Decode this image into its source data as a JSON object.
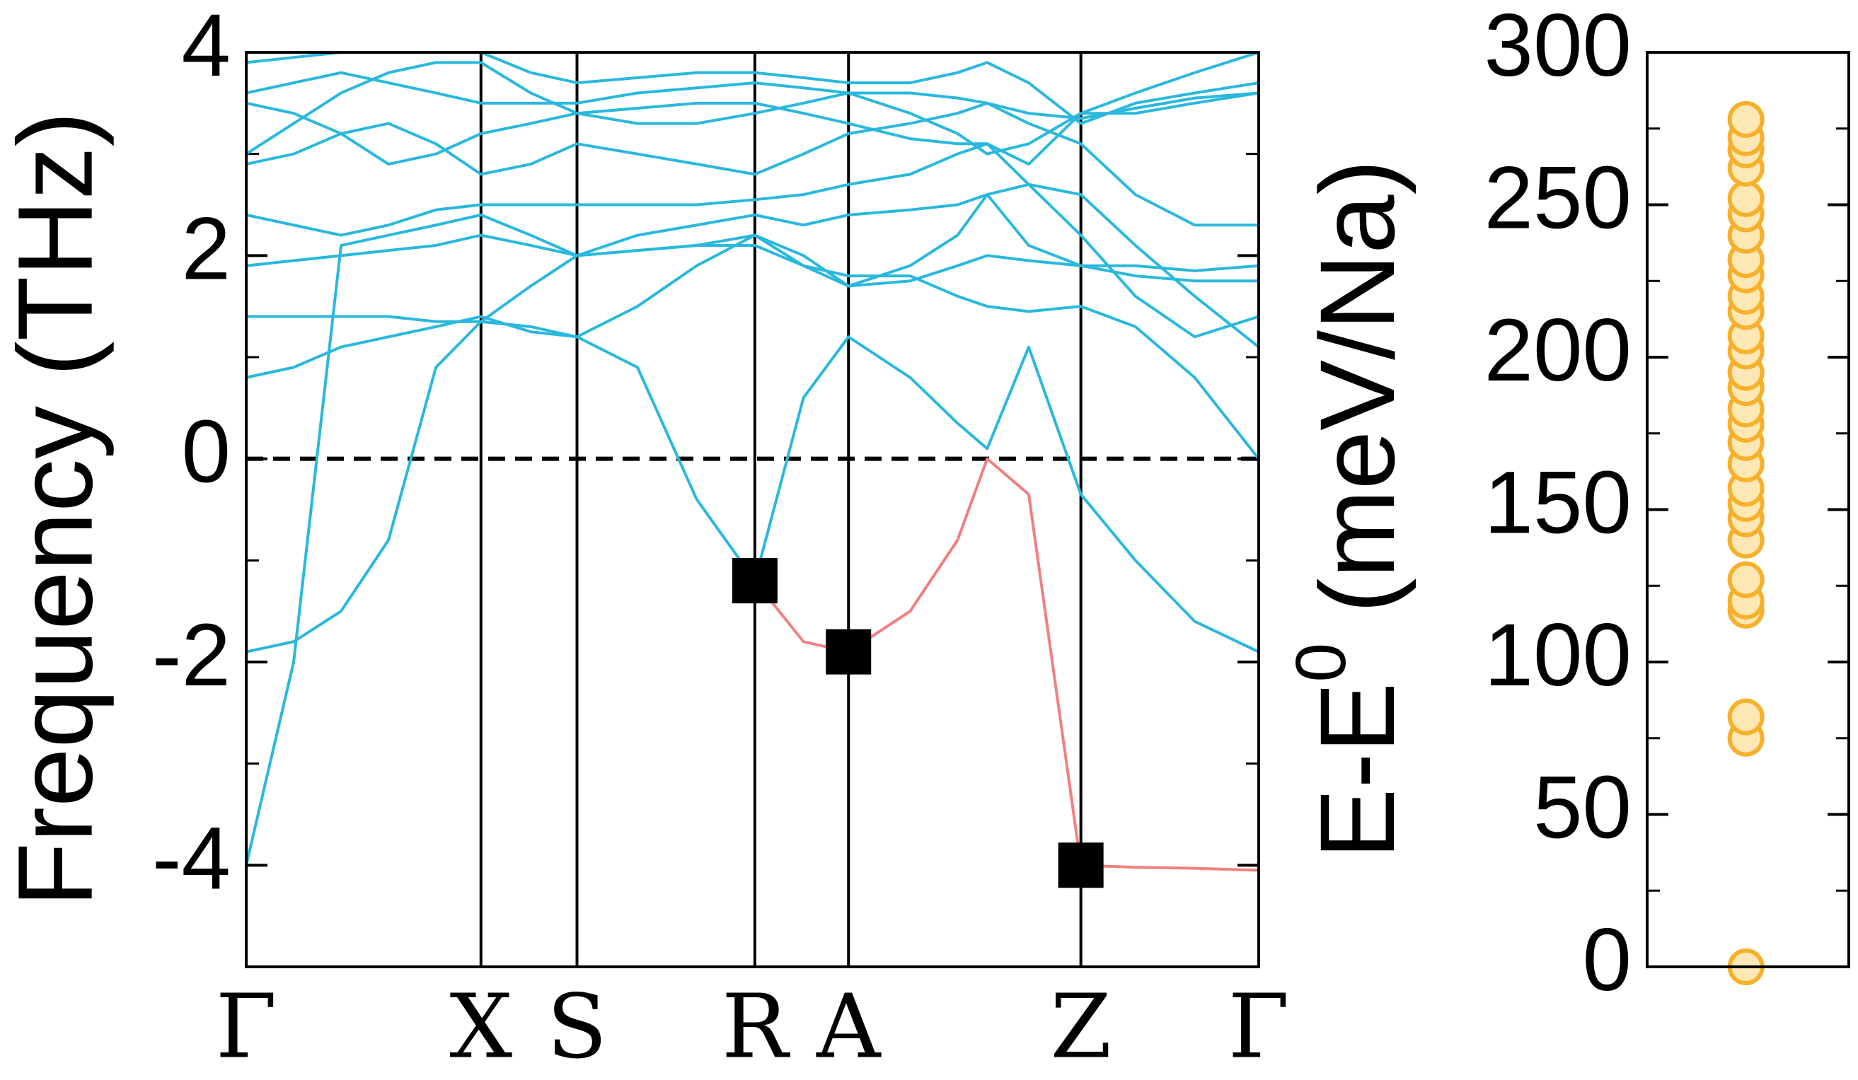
{
  "chart_data": [
    {
      "type": "line",
      "ylabel": "Frequency (THz)",
      "x": [
        0,
        0.4,
        0.8,
        1.2,
        1.6,
        1.98,
        2.4,
        2.79,
        3.3,
        3.8,
        4.29,
        4.7,
        5.08,
        5.6,
        6.0,
        6.25,
        6.6,
        7.04,
        7.5,
        8.0,
        8.54
      ],
      "xlim": [
        0,
        8.54
      ],
      "xticks": [
        {
          "value": 0,
          "label": "Γ"
        },
        {
          "value": 1.98,
          "label": "X"
        },
        {
          "value": 2.79,
          "label": "S"
        },
        {
          "value": 4.29,
          "label": "R"
        },
        {
          "value": 5.08,
          "label": "A"
        },
        {
          "value": 7.04,
          "label": "Z"
        },
        {
          "value": 8.54,
          "label": "Γ"
        }
      ],
      "ylim": [
        -5,
        4
      ],
      "yticks": [
        -4,
        -2,
        0,
        2,
        4
      ],
      "reference_line": {
        "value": 0,
        "style": "dashed",
        "color": "#000000"
      },
      "series": [
        {
          "color": "#2ab8dd",
          "values": [
            -1.9,
            -1.8,
            -1.5,
            -0.8,
            0.9,
            1.35,
            1.3,
            1.2,
            0.9,
            -0.4,
            -1.2,
            0.6,
            1.2,
            0.8,
            0.35,
            0.1,
            1.1,
            -0.35,
            -1.0,
            -1.6,
            -1.9
          ]
        },
        {
          "color": "#2ab8dd",
          "values": [
            -4.0,
            -2.0,
            2.1,
            2.2,
            2.3,
            2.4,
            2.2,
            2.0,
            2.05,
            2.1,
            2.2,
            1.9,
            1.7,
            1.75,
            1.9,
            2.0,
            1.95,
            1.9,
            1.9,
            1.85,
            1.9
          ]
        },
        {
          "color": "#2ab8dd",
          "values": [
            0.8,
            0.9,
            1.1,
            1.2,
            1.3,
            1.4,
            1.25,
            1.2,
            1.5,
            1.9,
            2.2,
            2.0,
            1.7,
            1.9,
            2.2,
            2.6,
            2.7,
            2.6,
            2.1,
            1.6,
            1.1
          ]
        },
        {
          "color": "#2ab8dd",
          "values": [
            1.4,
            1.4,
            1.4,
            1.4,
            1.35,
            1.35,
            1.7,
            2.0,
            2.05,
            2.1,
            2.1,
            1.9,
            1.8,
            1.8,
            1.6,
            1.5,
            1.45,
            1.5,
            1.3,
            0.8,
            0.0
          ]
        },
        {
          "color": "#2ab8dd",
          "values": [
            1.9,
            1.95,
            2.0,
            2.05,
            2.1,
            2.2,
            2.1,
            2.0,
            2.2,
            2.3,
            2.4,
            2.3,
            2.4,
            2.45,
            2.5,
            2.6,
            2.1,
            1.9,
            1.8,
            1.75,
            1.75
          ]
        },
        {
          "color": "#2ab8dd",
          "values": [
            2.4,
            2.3,
            2.2,
            2.3,
            2.45,
            2.5,
            2.5,
            2.5,
            2.5,
            2.5,
            2.55,
            2.6,
            2.7,
            2.8,
            3.0,
            3.1,
            2.7,
            2.2,
            1.6,
            1.2,
            1.4
          ]
        },
        {
          "color": "#2ab8dd",
          "values": [
            2.9,
            3.0,
            3.2,
            3.3,
            3.1,
            2.8,
            2.9,
            3.1,
            3.0,
            2.9,
            2.8,
            3.0,
            3.2,
            3.3,
            3.4,
            3.5,
            3.3,
            3.1,
            2.6,
            2.3,
            2.3
          ]
        },
        {
          "color": "#2ab8dd",
          "values": [
            3.5,
            3.4,
            3.2,
            2.9,
            3.0,
            3.2,
            3.3,
            3.4,
            3.45,
            3.5,
            3.5,
            3.4,
            3.3,
            3.15,
            3.1,
            3.1,
            2.9,
            3.4,
            3.4,
            3.5,
            3.6
          ]
        },
        {
          "color": "#2ab8dd",
          "values": [
            3.6,
            3.7,
            3.8,
            3.7,
            3.6,
            3.5,
            3.5,
            3.5,
            3.6,
            3.65,
            3.7,
            3.65,
            3.6,
            3.6,
            3.55,
            3.5,
            3.4,
            3.35,
            3.45,
            3.55,
            3.6
          ]
        },
        {
          "color": "#2ab8dd",
          "values": [
            3.9,
            3.95,
            4.0,
            4.0,
            4.0,
            4.0,
            3.8,
            3.7,
            3.75,
            3.8,
            3.8,
            3.75,
            3.7,
            3.7,
            3.8,
            3.9,
            3.7,
            3.3,
            3.5,
            3.6,
            3.7
          ]
        },
        {
          "color": "#2ab8dd",
          "values": [
            3.0,
            3.3,
            3.6,
            3.8,
            3.9,
            3.9,
            3.6,
            3.4,
            3.3,
            3.3,
            3.4,
            3.5,
            3.6,
            3.4,
            3.2,
            3.0,
            3.1,
            3.4,
            3.6,
            3.8,
            4.0
          ]
        },
        {
          "color": "#f08080",
          "values": [
            null,
            null,
            null,
            null,
            null,
            null,
            null,
            null,
            null,
            null,
            -1.2,
            -1.8,
            -1.9,
            -1.5,
            -0.8,
            0.0,
            -0.35,
            -4.0,
            -4.02,
            -4.03,
            -4.05
          ]
        }
      ],
      "markers": {
        "x": [
          4.29,
          5.08,
          7.04
        ],
        "values": [
          -1.2,
          -1.9,
          -4.0
        ],
        "color": "#000000",
        "shape": "square"
      }
    },
    {
      "type": "scatter",
      "ylabel": [
        "E-E",
        "0",
        " (meV/Na)"
      ],
      "ylim": [
        0,
        300
      ],
      "yticks": [
        0,
        50,
        100,
        150,
        200,
        250,
        300
      ],
      "values": [
        0,
        75,
        82,
        117,
        120,
        127,
        140,
        147,
        152,
        157,
        165,
        172,
        178,
        183,
        190,
        195,
        202,
        207,
        215,
        220,
        227,
        232,
        240,
        247,
        252,
        262,
        268,
        272,
        278
      ],
      "color": "#f7b02a",
      "fill": "#fde8b5"
    }
  ]
}
